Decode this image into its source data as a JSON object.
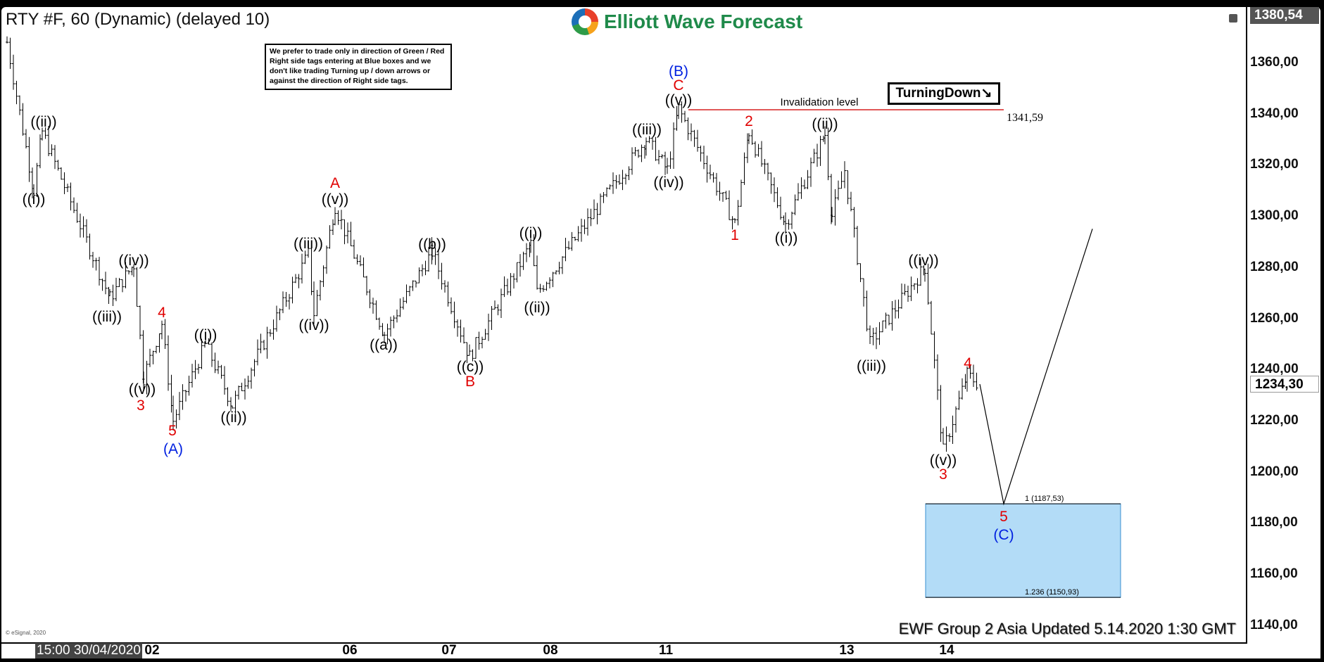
{
  "header": {
    "title": "RTY #F, 60 (Dynamic) (delayed 10)",
    "logo": "Elliott Wave Forecast",
    "restore_icon": "window-restore-icon"
  },
  "disclaimer": "We prefer to trade only in direction of Green / Red Right side tags entering at Blue boxes and we don't like trading Turning up / down arrows or against the direction of Right side tags.",
  "turning": "TurningDown↘",
  "footer": "EWF Group 2 Asia Updated 5.14.2020 1:30 GMT",
  "copyright": "© eSignal, 2020",
  "chart_data": {
    "type": "bar",
    "symbol": "RTY #F",
    "interval": "60",
    "y_ticks": [
      "1360,00",
      "1340,00",
      "1320,00",
      "1300,00",
      "1280,00",
      "1260,00",
      "1240,00",
      "1220,00",
      "1200,00",
      "1180,00",
      "1160,00",
      "1140,00"
    ],
    "y_tick_values": [
      1360,
      1340,
      1320,
      1300,
      1280,
      1260,
      1240,
      1220,
      1200,
      1180,
      1160,
      1140
    ],
    "ylim": [
      1140,
      1380.54
    ],
    "top_price_label": "1380,54",
    "last_price_label": "1234,30",
    "last_price": 1234.3,
    "x_start_label": "15:00 30/04/2020",
    "x_ticks": [
      "02",
      "06",
      "07",
      "08",
      "11",
      "13",
      "14"
    ],
    "pivot_prices": [
      1368,
      1310,
      1333,
      1268,
      1281,
      1237,
      1258,
      1220,
      1250,
      1226,
      1285,
      1262,
      1304,
      1254,
      1286,
      1245,
      1289,
      1270,
      1330,
      1318,
      1342,
      1297,
      1333,
      1297,
      1332,
      1300,
      1318,
      1250,
      1280,
      1208,
      1238,
      1234
    ],
    "projection_prices": [
      1234.3,
      1187.53,
      1295
    ],
    "invalidation": {
      "label": "Invalidation level",
      "value": 1341.59,
      "value_label": "1341,59",
      "color": "#d62020"
    },
    "target_box": {
      "color": "#b3dcf7",
      "fib_labels": [
        "1 (1187,53)",
        "1.236 (1150,93)"
      ],
      "top": 1187.53,
      "bottom": 1150.93
    },
    "wave_labels": [
      {
        "text": "((ii))",
        "color": "#000"
      },
      {
        "text": "((i))",
        "color": "#000"
      },
      {
        "text": "((iv))",
        "color": "#000"
      },
      {
        "text": "((iii))",
        "color": "#000"
      },
      {
        "text": "((v))",
        "color": "#000"
      },
      {
        "text": "3",
        "color": "#e00000"
      },
      {
        "text": "4",
        "color": "#e00000"
      },
      {
        "text": "5",
        "color": "#e00000"
      },
      {
        "text": "(A)",
        "color": "#0020e0"
      },
      {
        "text": "((i))",
        "color": "#000"
      },
      {
        "text": "((ii))",
        "color": "#000"
      },
      {
        "text": "((iii))",
        "color": "#000"
      },
      {
        "text": "((iv))",
        "color": "#000"
      },
      {
        "text": "((v))",
        "color": "#000"
      },
      {
        "text": "A",
        "color": "#e00000"
      },
      {
        "text": "((a))",
        "color": "#000"
      },
      {
        "text": "((b))",
        "color": "#000"
      },
      {
        "text": "((c))",
        "color": "#000"
      },
      {
        "text": "B",
        "color": "#e00000"
      },
      {
        "text": "((i))",
        "color": "#000"
      },
      {
        "text": "((ii))",
        "color": "#000"
      },
      {
        "text": "((iii))",
        "color": "#000"
      },
      {
        "text": "((iv))",
        "color": "#000"
      },
      {
        "text": "((v))",
        "color": "#000"
      },
      {
        "text": "C",
        "color": "#e00000"
      },
      {
        "text": "(B)",
        "color": "#0020e0"
      },
      {
        "text": "1",
        "color": "#e00000"
      },
      {
        "text": "2",
        "color": "#e00000"
      },
      {
        "text": "((i))",
        "color": "#000"
      },
      {
        "text": "((ii))",
        "color": "#000"
      },
      {
        "text": "((iii))",
        "color": "#000"
      },
      {
        "text": "((iv))",
        "color": "#000"
      },
      {
        "text": "((v))",
        "color": "#000"
      },
      {
        "text": "3",
        "color": "#e00000"
      },
      {
        "text": "4",
        "color": "#e00000"
      },
      {
        "text": "5",
        "color": "#e00000"
      },
      {
        "text": "(C)",
        "color": "#0020e0"
      }
    ]
  }
}
